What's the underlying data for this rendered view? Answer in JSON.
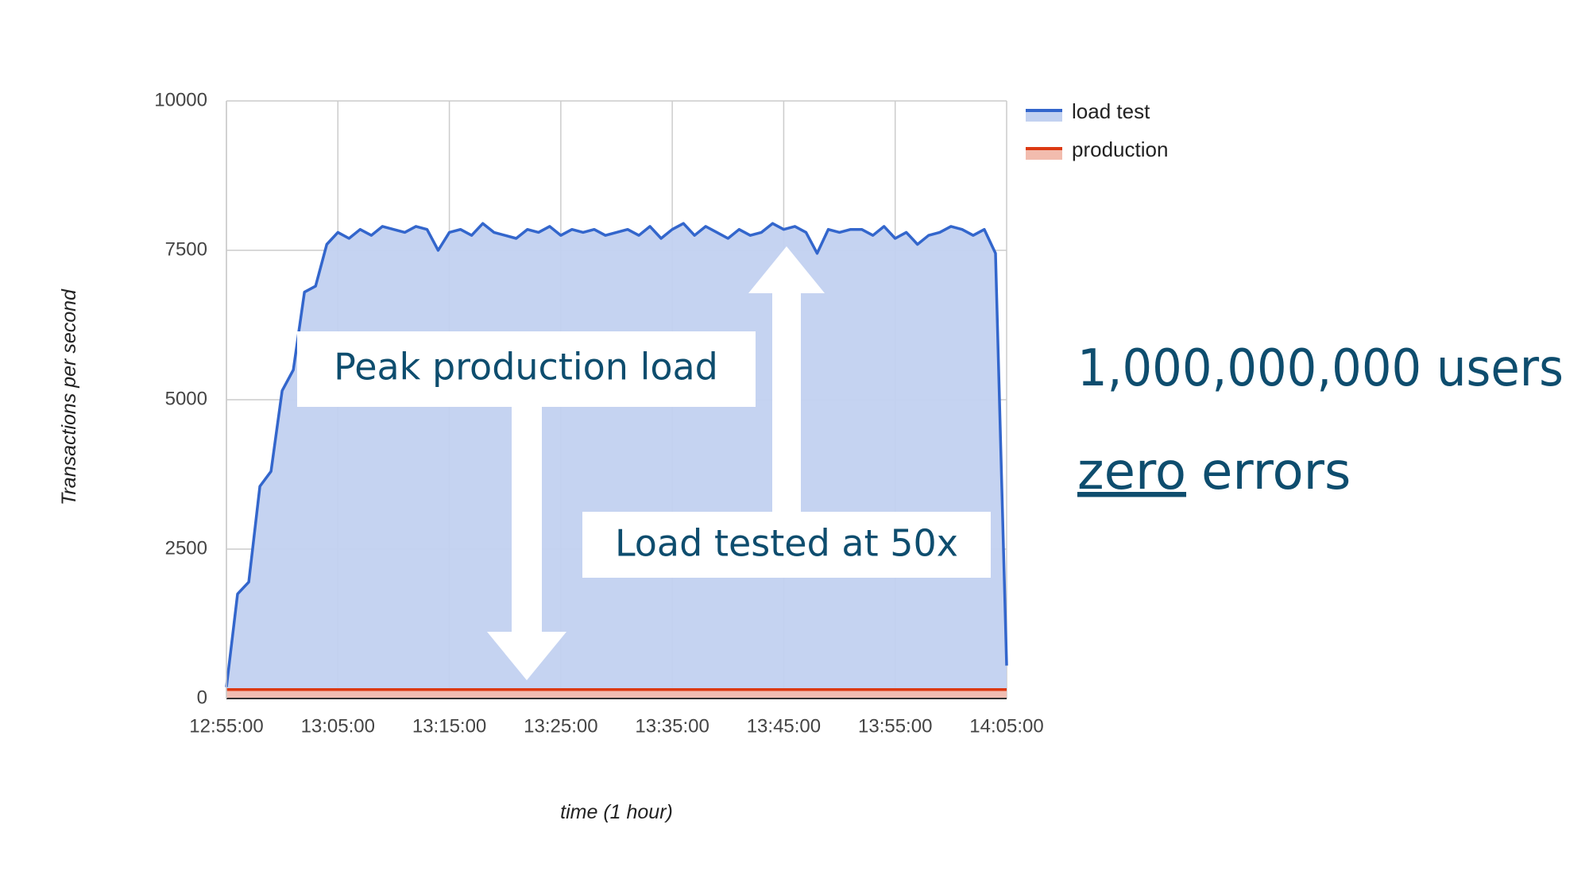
{
  "chart_data": {
    "type": "area",
    "x_label": "time (1 hour)",
    "y_label": "Transactions per second",
    "x": [
      "12:55:00",
      "12:56:00",
      "12:57:00",
      "12:58:00",
      "12:59:00",
      "13:00:00",
      "13:01:00",
      "13:02:00",
      "13:03:00",
      "13:04:00",
      "13:05:00",
      "13:06:00",
      "13:07:00",
      "13:08:00",
      "13:09:00",
      "13:10:00",
      "13:11:00",
      "13:12:00",
      "13:13:00",
      "13:14:00",
      "13:15:00",
      "13:16:00",
      "13:17:00",
      "13:18:00",
      "13:19:00",
      "13:20:00",
      "13:21:00",
      "13:22:00",
      "13:23:00",
      "13:24:00",
      "13:25:00",
      "13:26:00",
      "13:27:00",
      "13:28:00",
      "13:29:00",
      "13:30:00",
      "13:31:00",
      "13:32:00",
      "13:33:00",
      "13:34:00",
      "13:35:00",
      "13:36:00",
      "13:37:00",
      "13:38:00",
      "13:39:00",
      "13:40:00",
      "13:41:00",
      "13:42:00",
      "13:43:00",
      "13:44:00",
      "13:45:00",
      "13:46:00",
      "13:47:00",
      "13:48:00",
      "13:49:00",
      "13:50:00",
      "13:51:00",
      "13:52:00",
      "13:53:00",
      "13:54:00",
      "13:55:00",
      "13:56:00",
      "13:57:00",
      "13:58:00",
      "13:59:00",
      "14:00:00",
      "14:01:00",
      "14:02:00",
      "14:03:00",
      "14:04:00",
      "14:05:00"
    ],
    "series": [
      {
        "name": "load test",
        "color": "#3366cc",
        "fill": "#c2d1f0",
        "values": [
          190,
          1750,
          1950,
          3550,
          3800,
          5150,
          5500,
          6800,
          6900,
          7600,
          7800,
          7700,
          7850,
          7750,
          7900,
          7850,
          7800,
          7900,
          7850,
          7500,
          7800,
          7850,
          7750,
          7950,
          7800,
          7750,
          7700,
          7850,
          7800,
          7900,
          7750,
          7850,
          7800,
          7850,
          7750,
          7800,
          7850,
          7750,
          7900,
          7700,
          7850,
          7950,
          7750,
          7900,
          7800,
          7700,
          7850,
          7750,
          7800,
          7950,
          7850,
          7900,
          7800,
          7450,
          7850,
          7800,
          7850,
          7850,
          7750,
          7900,
          7700,
          7800,
          7600,
          7750,
          7800,
          7900,
          7850,
          7750,
          7850,
          7450,
          550
        ]
      },
      {
        "name": "production",
        "color": "#dc3912",
        "fill": "#f2bcae",
        "values": [
          150,
          150,
          150,
          150,
          150,
          150,
          150,
          150,
          150,
          150,
          150,
          150,
          150,
          150,
          150,
          150,
          150,
          150,
          150,
          150,
          150,
          150,
          150,
          150,
          150,
          150,
          150,
          150,
          150,
          150,
          150,
          150,
          150,
          150,
          150,
          150,
          150,
          150,
          150,
          150,
          150,
          150,
          150,
          150,
          150,
          150,
          150,
          150,
          150,
          150,
          150,
          150,
          150,
          150,
          150,
          150,
          150,
          150,
          150,
          150,
          150,
          150,
          150,
          150,
          150,
          150,
          150,
          150,
          150,
          150,
          150
        ]
      }
    ],
    "xlim": [
      "12:55:00",
      "14:05:00"
    ],
    "xticks": [
      "12:55:00",
      "13:05:00",
      "13:15:00",
      "13:25:00",
      "13:35:00",
      "13:45:00",
      "13:55:00",
      "14:05:00"
    ],
    "ylim": [
      0,
      10000
    ],
    "yticks": [
      0,
      2500,
      5000,
      7500,
      10000
    ],
    "grid": true,
    "legend": "right",
    "callouts": [
      "Peak production load",
      "Load tested at 50x"
    ],
    "headline": "1,000,000,000 users",
    "emphasis": "zero",
    "tagline": "errors"
  }
}
